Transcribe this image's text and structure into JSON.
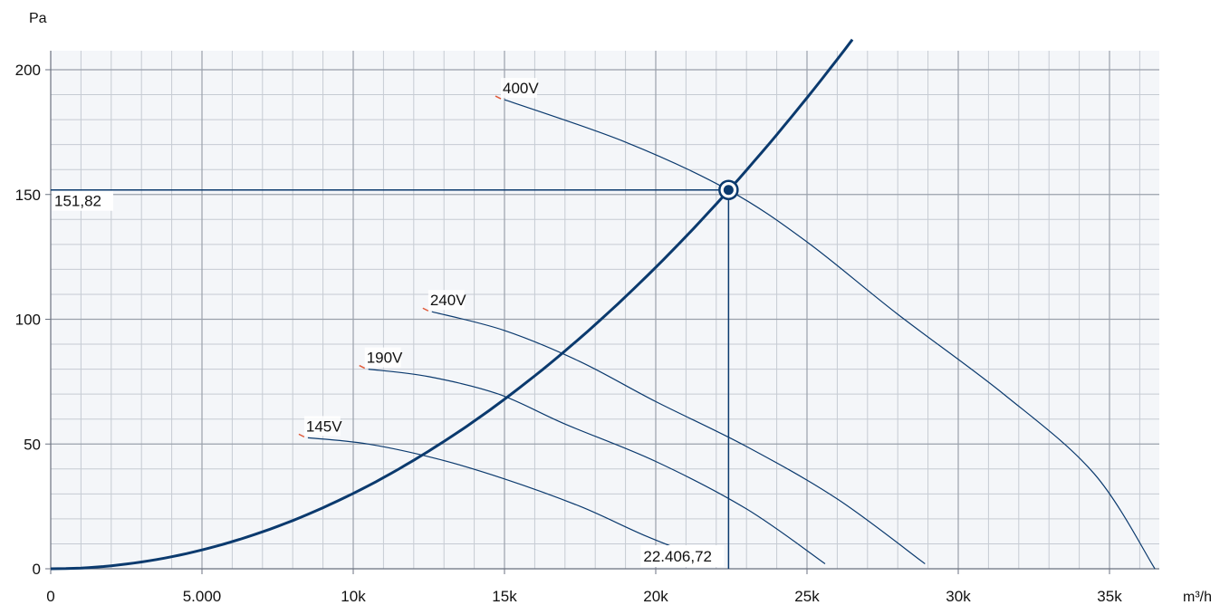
{
  "chart_data": {
    "type": "line",
    "x_unit": "m³/h",
    "y_unit": "Pa",
    "xlim": [
      0,
      36500
    ],
    "ylim": [
      0,
      205
    ],
    "x_ticks": [
      {
        "value": 0,
        "label": "0"
      },
      {
        "value": 5000,
        "label": "5.000"
      },
      {
        "value": 10000,
        "label": "10k"
      },
      {
        "value": 15000,
        "label": "15k"
      },
      {
        "value": 20000,
        "label": "20k"
      },
      {
        "value": 25000,
        "label": "25k"
      },
      {
        "value": 30000,
        "label": "30k"
      },
      {
        "value": 35000,
        "label": "35k"
      }
    ],
    "y_ticks": [
      {
        "value": 0,
        "label": "0"
      },
      {
        "value": 50,
        "label": "50"
      },
      {
        "value": 100,
        "label": "100"
      },
      {
        "value": 150,
        "label": "150"
      },
      {
        "value": 200,
        "label": "200"
      }
    ],
    "grid": true,
    "series": [
      {
        "name": "400V",
        "role": "fan-curve",
        "points": [
          [
            15000,
            188
          ],
          [
            19000,
            171
          ],
          [
            22400,
            151.8
          ],
          [
            25000,
            131
          ],
          [
            28000,
            102
          ],
          [
            31500,
            70
          ],
          [
            34500,
            38
          ],
          [
            36500,
            0
          ]
        ]
      },
      {
        "name": "240V",
        "role": "fan-curve",
        "points": [
          [
            12600,
            103
          ],
          [
            15000,
            95.5
          ],
          [
            17500,
            83
          ],
          [
            20000,
            67
          ],
          [
            23000,
            49
          ],
          [
            26000,
            28
          ],
          [
            28900,
            2
          ]
        ]
      },
      {
        "name": "190V",
        "role": "fan-curve",
        "points": [
          [
            10500,
            80
          ],
          [
            12500,
            77
          ],
          [
            14800,
            70
          ],
          [
            17000,
            58
          ],
          [
            20000,
            43
          ],
          [
            23000,
            24
          ],
          [
            25600,
            2
          ]
        ]
      },
      {
        "name": "145V",
        "role": "fan-curve",
        "points": [
          [
            8500,
            52.5
          ],
          [
            10500,
            50
          ],
          [
            12800,
            44
          ],
          [
            15000,
            36
          ],
          [
            17500,
            25
          ],
          [
            19700,
            13
          ],
          [
            21800,
            3
          ]
        ]
      },
      {
        "role": "system-curve",
        "coefficient": 3.02e-07
      }
    ],
    "operating_point": {
      "x": 22406.72,
      "y": 151.82,
      "x_label": "22.406,72",
      "y_label": "151,82"
    },
    "colors": {
      "curve": "#0b3a6e",
      "grid_major": "#9aa1ab",
      "grid_minor": "#c6cbd3",
      "plot_bg": "#f4f6f9",
      "label_marker": "#e05a3a"
    }
  }
}
